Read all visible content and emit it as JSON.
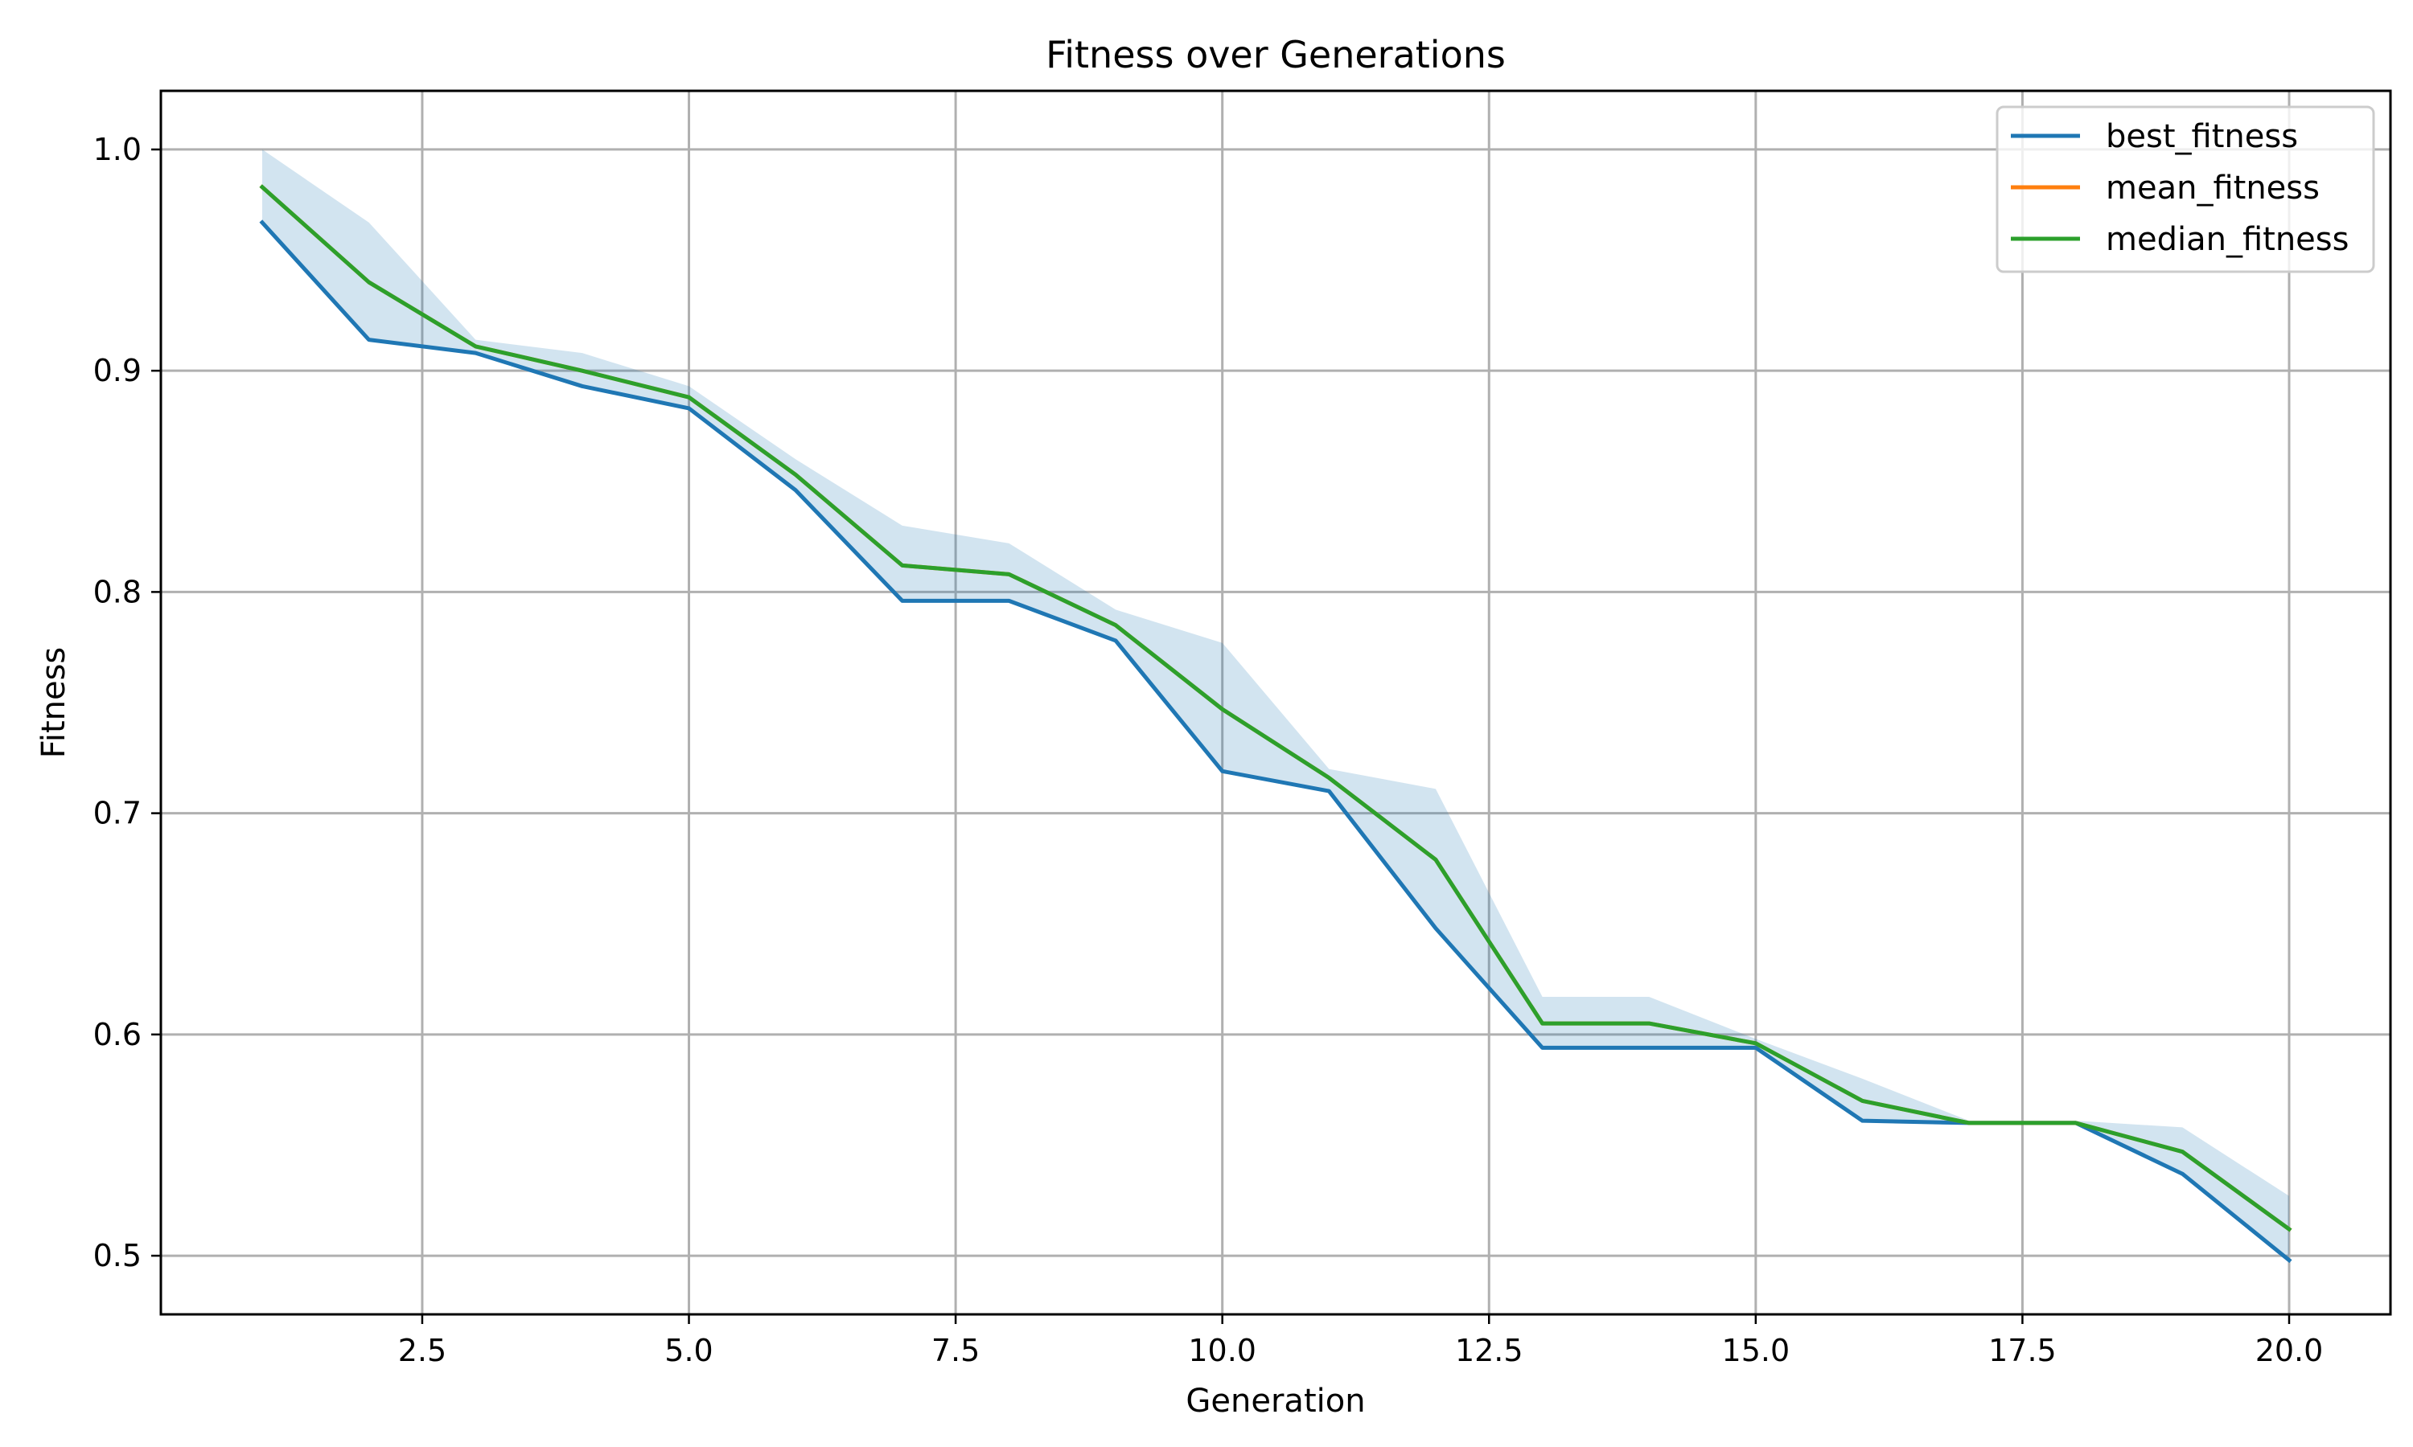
{
  "chart_data": {
    "type": "line",
    "title": "Fitness over Generations",
    "xlabel": "Generation",
    "ylabel": "Fitness",
    "xlim": [
      0.05,
      20.95
    ],
    "ylim": [
      0.4735,
      1.0265
    ],
    "xticks": [
      2.5,
      5.0,
      7.5,
      10.0,
      12.5,
      15.0,
      17.5,
      20.0
    ],
    "xtick_labels": [
      "2.5",
      "5.0",
      "7.5",
      "10.0",
      "12.5",
      "15.0",
      "17.5",
      "20.0"
    ],
    "yticks": [
      0.5,
      0.6,
      0.7,
      0.8,
      0.9,
      1.0
    ],
    "ytick_labels": [
      "0.5",
      "0.6",
      "0.7",
      "0.8",
      "0.9",
      "1.0"
    ],
    "grid": true,
    "legend_position": "top-right",
    "x": [
      1,
      2,
      3,
      4,
      5,
      6,
      7,
      8,
      9,
      10,
      11,
      12,
      13,
      14,
      15,
      16,
      17,
      18,
      19,
      20
    ],
    "series": [
      {
        "name": "best_fitness",
        "color": "#1f77b4",
        "values": [
          0.967,
          0.914,
          0.908,
          0.893,
          0.883,
          0.846,
          0.796,
          0.796,
          0.778,
          0.719,
          0.71,
          0.648,
          0.594,
          0.594,
          0.594,
          0.561,
          0.56,
          0.56,
          0.537,
          0.498
        ]
      },
      {
        "name": "mean_fitness",
        "color": "#ff7f0e",
        "values": [
          0.983,
          0.94,
          0.911,
          0.9,
          0.888,
          0.853,
          0.812,
          0.808,
          0.785,
          0.747,
          0.716,
          0.679,
          0.605,
          0.605,
          0.596,
          0.57,
          0.56,
          0.56,
          0.547,
          0.512
        ]
      },
      {
        "name": "median_fitness",
        "color": "#2ca02c",
        "values": [
          0.983,
          0.94,
          0.911,
          0.9,
          0.888,
          0.853,
          0.812,
          0.808,
          0.785,
          0.747,
          0.716,
          0.679,
          0.605,
          0.605,
          0.596,
          0.57,
          0.56,
          0.56,
          0.547,
          0.512
        ]
      }
    ],
    "band": {
      "color": "#1f77b4",
      "lower": [
        0.967,
        0.914,
        0.908,
        0.893,
        0.883,
        0.846,
        0.796,
        0.796,
        0.778,
        0.719,
        0.71,
        0.648,
        0.594,
        0.594,
        0.594,
        0.561,
        0.56,
        0.56,
        0.537,
        0.498
      ],
      "upper": [
        1.0,
        0.967,
        0.914,
        0.908,
        0.893,
        0.86,
        0.83,
        0.822,
        0.792,
        0.777,
        0.72,
        0.711,
        0.617,
        0.617,
        0.598,
        0.58,
        0.561,
        0.561,
        0.558,
        0.527
      ]
    }
  }
}
